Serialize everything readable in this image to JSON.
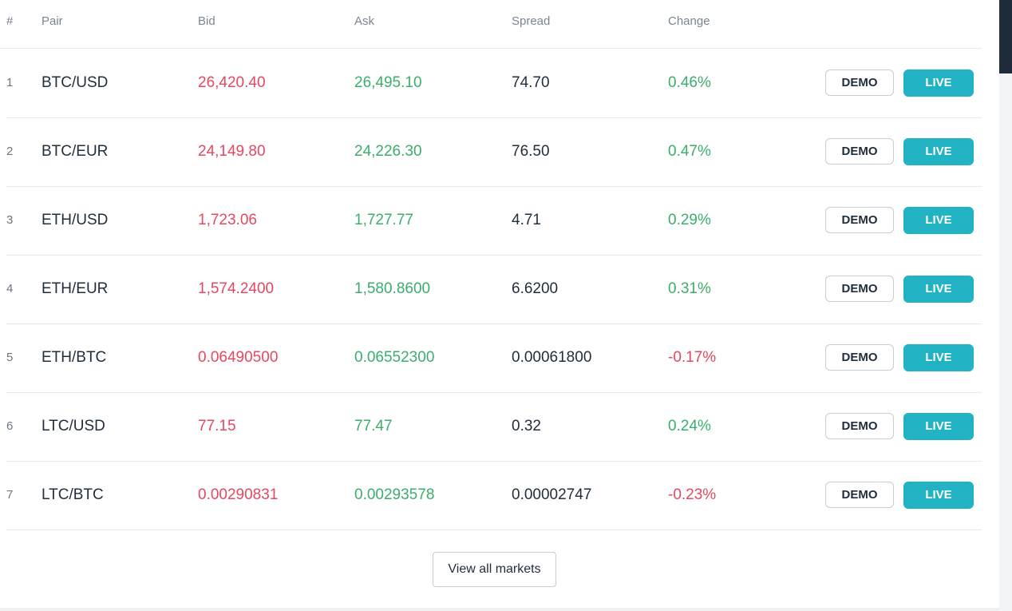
{
  "columns": {
    "index": "#",
    "pair": "Pair",
    "bid": "Bid",
    "ask": "Ask",
    "spread": "Spread",
    "change": "Change"
  },
  "rows": [
    {
      "index": "1",
      "pair": "BTC/USD",
      "bid": "26,420.40",
      "ask": "26,495.10",
      "spread": "74.70",
      "change": "0.46%",
      "direction": "up"
    },
    {
      "index": "2",
      "pair": "BTC/EUR",
      "bid": "24,149.80",
      "ask": "24,226.30",
      "spread": "76.50",
      "change": "0.47%",
      "direction": "up"
    },
    {
      "index": "3",
      "pair": "ETH/USD",
      "bid": "1,723.06",
      "ask": "1,727.77",
      "spread": "4.71",
      "change": "0.29%",
      "direction": "up"
    },
    {
      "index": "4",
      "pair": "ETH/EUR",
      "bid": "1,574.2400",
      "ask": "1,580.8600",
      "spread": "6.6200",
      "change": "0.31%",
      "direction": "up"
    },
    {
      "index": "5",
      "pair": "ETH/BTC",
      "bid": "0.06490500",
      "ask": "0.06552300",
      "spread": "0.00061800",
      "change": "-0.17%",
      "direction": "down"
    },
    {
      "index": "6",
      "pair": "LTC/USD",
      "bid": "77.15",
      "ask": "77.47",
      "spread": "0.32",
      "change": "0.24%",
      "direction": "up"
    },
    {
      "index": "7",
      "pair": "LTC/BTC",
      "bid": "0.00290831",
      "ask": "0.00293578",
      "spread": "0.00002747",
      "change": "-0.23%",
      "direction": "down"
    }
  ],
  "buttons": {
    "demo": "DEMO",
    "live": "LIVE",
    "view_all": "View all markets"
  },
  "colors": {
    "bid": "#e5485f",
    "ask": "#3bae6b",
    "positive_change": "#3bae6b",
    "negative_change": "#e5485f",
    "live_button": "#21b3c4"
  }
}
